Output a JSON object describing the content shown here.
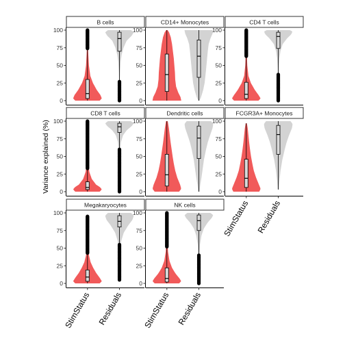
{
  "chart_data": {
    "type": "violin",
    "ylabel": "Variance explained (%)",
    "xlabel": "",
    "ylim": [
      0,
      100
    ],
    "yticks": [
      0,
      25,
      50,
      75,
      100
    ],
    "categories": [
      "StimStatus",
      "Residuals"
    ],
    "colors": {
      "StimStatus": "#f15a5a",
      "Residuals": "#d3d3d3"
    },
    "panels": [
      {
        "title": "B cells",
        "StimStatus": {
          "q1": 3,
          "median": 10,
          "q3": 30,
          "whisker_low": 0,
          "whisker_high": 74,
          "outlier_range": [
            74,
            100
          ],
          "density": [
            [
              0,
              0.85
            ],
            [
              3,
              1.0
            ],
            [
              8,
              0.9
            ],
            [
              15,
              0.65
            ],
            [
              25,
              0.38
            ],
            [
              35,
              0.2
            ],
            [
              50,
              0.1
            ],
            [
              65,
              0.06
            ],
            [
              80,
              0.03
            ],
            [
              100,
              0.01
            ]
          ]
        },
        "Residuals": {
          "q1": 70,
          "median": 88,
          "q3": 97,
          "whisker_low": 27,
          "whisker_high": 100,
          "outlier_range": [
            0,
            27
          ],
          "density": [
            [
              0,
              0.01
            ],
            [
              20,
              0.02
            ],
            [
              40,
              0.04
            ],
            [
              55,
              0.08
            ],
            [
              65,
              0.15
            ],
            [
              75,
              0.28
            ],
            [
              85,
              0.5
            ],
            [
              92,
              0.85
            ],
            [
              97,
              1.0
            ],
            [
              100,
              0.8
            ]
          ]
        }
      },
      {
        "title": "CD14+ Monocytes",
        "StimStatus": {
          "q1": 13,
          "median": 37,
          "q3": 66,
          "whisker_low": 0,
          "whisker_high": 100,
          "outlier_range": null,
          "density": [
            [
              0,
              1.0
            ],
            [
              5,
              0.95
            ],
            [
              12,
              0.78
            ],
            [
              20,
              0.64
            ],
            [
              30,
              0.58
            ],
            [
              40,
              0.56
            ],
            [
              50,
              0.52
            ],
            [
              60,
              0.48
            ],
            [
              70,
              0.42
            ],
            [
              80,
              0.36
            ],
            [
              90,
              0.27
            ],
            [
              97,
              0.15
            ],
            [
              100,
              0.05
            ]
          ]
        },
        "Residuals": {
          "q1": 33,
          "median": 63,
          "q3": 86,
          "whisker_low": 0,
          "whisker_high": 100,
          "outlier_range": null,
          "density": [
            [
              0,
              0.05
            ],
            [
              5,
              0.15
            ],
            [
              15,
              0.3
            ],
            [
              25,
              0.4
            ],
            [
              40,
              0.48
            ],
            [
              55,
              0.55
            ],
            [
              70,
              0.62
            ],
            [
              80,
              0.68
            ],
            [
              88,
              0.8
            ],
            [
              95,
              0.95
            ],
            [
              100,
              1.0
            ]
          ]
        }
      },
      {
        "title": "CD4 T cells",
        "StimStatus": {
          "q1": 3,
          "median": 9,
          "q3": 26,
          "whisker_low": 0,
          "whisker_high": 63,
          "outlier_range": [
            63,
            100
          ],
          "density": [
            [
              0,
              0.85
            ],
            [
              3,
              1.0
            ],
            [
              8,
              0.85
            ],
            [
              15,
              0.6
            ],
            [
              25,
              0.32
            ],
            [
              35,
              0.15
            ],
            [
              50,
              0.07
            ],
            [
              65,
              0.04
            ],
            [
              80,
              0.02
            ],
            [
              100,
              0.01
            ]
          ]
        },
        "Residuals": {
          "q1": 74,
          "median": 91,
          "q3": 97,
          "whisker_low": 37,
          "whisker_high": 100,
          "outlier_range": [
            0,
            37
          ],
          "density": [
            [
              0,
              0.01
            ],
            [
              25,
              0.02
            ],
            [
              45,
              0.04
            ],
            [
              60,
              0.08
            ],
            [
              70,
              0.15
            ],
            [
              80,
              0.3
            ],
            [
              88,
              0.6
            ],
            [
              94,
              0.9
            ],
            [
              98,
              1.0
            ],
            [
              100,
              0.8
            ]
          ]
        }
      },
      {
        "title": "CD8 T cells",
        "StimStatus": {
          "q1": 3,
          "median": 6,
          "q3": 14,
          "whisker_low": 0,
          "whisker_high": 33,
          "outlier_range": [
            33,
            100
          ],
          "density": [
            [
              0,
              0.85
            ],
            [
              3,
              1.0
            ],
            [
              6,
              0.9
            ],
            [
              10,
              0.6
            ],
            [
              18,
              0.3
            ],
            [
              28,
              0.13
            ],
            [
              40,
              0.06
            ],
            [
              60,
              0.03
            ],
            [
              80,
              0.02
            ],
            [
              100,
              0.01
            ]
          ]
        },
        "Residuals": {
          "q1": 84,
          "median": 92,
          "q3": 97,
          "whisker_low": 60,
          "whisker_high": 100,
          "outlier_range": [
            0,
            60
          ],
          "density": [
            [
              0,
              0.01
            ],
            [
              30,
              0.02
            ],
            [
              55,
              0.04
            ],
            [
              70,
              0.1
            ],
            [
              80,
              0.25
            ],
            [
              87,
              0.5
            ],
            [
              93,
              0.85
            ],
            [
              97,
              1.0
            ],
            [
              100,
              0.8
            ]
          ]
        }
      },
      {
        "title": "Dendritic cells",
        "StimStatus": {
          "q1": 8,
          "median": 24,
          "q3": 53,
          "whisker_low": 0,
          "whisker_high": 100,
          "outlier_range": null,
          "density": [
            [
              0,
              0.85
            ],
            [
              4,
              1.0
            ],
            [
              10,
              0.92
            ],
            [
              20,
              0.72
            ],
            [
              30,
              0.58
            ],
            [
              40,
              0.48
            ],
            [
              50,
              0.4
            ],
            [
              60,
              0.33
            ],
            [
              70,
              0.26
            ],
            [
              80,
              0.2
            ],
            [
              90,
              0.14
            ],
            [
              100,
              0.06
            ]
          ]
        },
        "Residuals": {
          "q1": 47,
          "median": 76,
          "q3": 93,
          "whisker_low": 0,
          "whisker_high": 100,
          "outlier_range": null,
          "density": [
            [
              0,
              0.05
            ],
            [
              10,
              0.1
            ],
            [
              20,
              0.18
            ],
            [
              30,
              0.25
            ],
            [
              45,
              0.35
            ],
            [
              60,
              0.5
            ],
            [
              70,
              0.62
            ],
            [
              80,
              0.78
            ],
            [
              90,
              0.95
            ],
            [
              96,
              1.0
            ],
            [
              100,
              0.85
            ]
          ]
        }
      },
      {
        "title": "FCGR3A+ Monocytes",
        "StimStatus": {
          "q1": 6,
          "median": 19,
          "q3": 46,
          "whisker_low": 0,
          "whisker_high": 97,
          "outlier_range": null,
          "density": [
            [
              0,
              0.9
            ],
            [
              4,
              1.0
            ],
            [
              10,
              0.88
            ],
            [
              20,
              0.68
            ],
            [
              30,
              0.52
            ],
            [
              40,
              0.42
            ],
            [
              50,
              0.33
            ],
            [
              60,
              0.26
            ],
            [
              70,
              0.2
            ],
            [
              80,
              0.15
            ],
            [
              90,
              0.1
            ],
            [
              97,
              0.04
            ]
          ]
        },
        "Residuals": {
          "q1": 53,
          "median": 81,
          "q3": 94,
          "whisker_low": 3,
          "whisker_high": 100,
          "outlier_range": null,
          "density": [
            [
              3,
              0.04
            ],
            [
              15,
              0.08
            ],
            [
              30,
              0.16
            ],
            [
              45,
              0.28
            ],
            [
              60,
              0.45
            ],
            [
              70,
              0.58
            ],
            [
              80,
              0.75
            ],
            [
              90,
              0.95
            ],
            [
              96,
              1.0
            ],
            [
              100,
              0.85
            ]
          ]
        }
      },
      {
        "title": "Megakaryocytes",
        "StimStatus": {
          "q1": 3,
          "median": 9,
          "q3": 19,
          "whisker_low": 0,
          "whisker_high": 43,
          "outlier_range": [
            43,
            95
          ],
          "density": [
            [
              0,
              0.85
            ],
            [
              3,
              1.0
            ],
            [
              8,
              0.85
            ],
            [
              15,
              0.6
            ],
            [
              22,
              0.4
            ],
            [
              30,
              0.22
            ],
            [
              40,
              0.1
            ],
            [
              55,
              0.05
            ],
            [
              70,
              0.03
            ],
            [
              85,
              0.02
            ],
            [
              95,
              0.01
            ]
          ]
        },
        "Residuals": {
          "q1": 80,
          "median": 88,
          "q3": 96,
          "whisker_low": 55,
          "whisker_high": 100,
          "outlier_range": [
            5,
            55
          ],
          "density": [
            [
              5,
              0.01
            ],
            [
              25,
              0.02
            ],
            [
              45,
              0.05
            ],
            [
              60,
              0.12
            ],
            [
              72,
              0.3
            ],
            [
              82,
              0.6
            ],
            [
              90,
              0.9
            ],
            [
              96,
              1.0
            ],
            [
              100,
              0.8
            ]
          ]
        }
      },
      {
        "title": "NK cells",
        "StimStatus": {
          "q1": 2,
          "median": 7,
          "q3": 22,
          "whisker_low": 0,
          "whisker_high": 52,
          "outlier_range": [
            52,
            100
          ],
          "density": [
            [
              0,
              0.85
            ],
            [
              3,
              1.0
            ],
            [
              7,
              0.88
            ],
            [
              14,
              0.6
            ],
            [
              22,
              0.36
            ],
            [
              32,
              0.18
            ],
            [
              45,
              0.08
            ],
            [
              60,
              0.04
            ],
            [
              80,
              0.02
            ],
            [
              100,
              0.01
            ]
          ]
        },
        "Residuals": {
          "q1": 75,
          "median": 89,
          "q3": 97,
          "whisker_low": 40,
          "whisker_high": 100,
          "outlier_range": [
            0,
            40
          ],
          "density": [
            [
              0,
              0.01
            ],
            [
              20,
              0.02
            ],
            [
              40,
              0.04
            ],
            [
              55,
              0.08
            ],
            [
              68,
              0.18
            ],
            [
              78,
              0.35
            ],
            [
              86,
              0.6
            ],
            [
              93,
              0.9
            ],
            [
              97,
              1.0
            ],
            [
              100,
              0.8
            ]
          ]
        }
      }
    ]
  }
}
